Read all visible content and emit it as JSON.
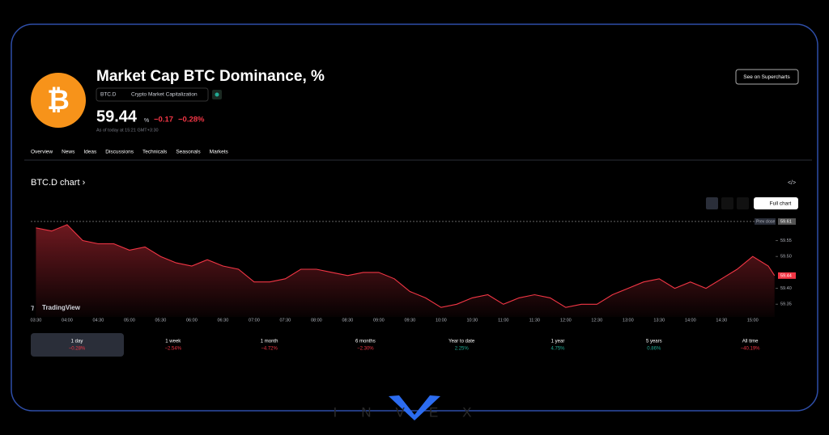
{
  "header": {
    "title": "Market Cap BTC Dominance, %",
    "symbol": "BTC.D",
    "exchange": "Crypto Market Capitalization",
    "price": "59.44",
    "unit": "%",
    "change": "−0.17",
    "change_pct": "−0.28%",
    "as_of": "As of today at 15:21 GMT+3:30",
    "button": "See on Supercharts"
  },
  "tabs": [
    "Overview",
    "News",
    "Ideas",
    "Discussions",
    "Technicals",
    "Seasonals",
    "Markets"
  ],
  "section_title": "BTC.D chart ›",
  "full_chart": "Full chart",
  "chart_data": {
    "type": "area",
    "color": "#f23645",
    "x": [
      "03:30",
      "03:45",
      "04:00",
      "04:15",
      "04:30",
      "04:45",
      "05:00",
      "05:15",
      "05:30",
      "05:45",
      "06:00",
      "06:15",
      "06:30",
      "06:45",
      "07:00",
      "07:15",
      "07:30",
      "07:45",
      "08:00",
      "08:15",
      "08:30",
      "08:45",
      "09:00",
      "09:15",
      "09:30",
      "09:45",
      "10:00",
      "10:15",
      "10:30",
      "10:45",
      "11:00",
      "11:15",
      "11:30",
      "11:45",
      "12:00",
      "12:15",
      "12:30",
      "12:45",
      "13:00",
      "13:15",
      "13:30",
      "13:45",
      "14:00",
      "14:15",
      "14:30",
      "14:45",
      "15:00",
      "15:15",
      "15:21"
    ],
    "values": [
      59.59,
      59.58,
      59.6,
      59.55,
      59.54,
      59.54,
      59.52,
      59.53,
      59.5,
      59.48,
      59.47,
      59.49,
      59.47,
      59.46,
      59.42,
      59.42,
      59.43,
      59.46,
      59.46,
      59.45,
      59.44,
      59.45,
      59.45,
      59.43,
      59.39,
      59.37,
      59.34,
      59.35,
      59.37,
      59.38,
      59.35,
      59.37,
      59.38,
      59.37,
      59.34,
      59.35,
      59.35,
      59.38,
      59.4,
      59.42,
      59.43,
      59.4,
      59.42,
      59.4,
      59.43,
      59.46,
      59.5,
      59.47,
      59.44
    ],
    "xlim": [
      "03:25",
      "15:22"
    ],
    "xticks": [
      "03:30",
      "04:00",
      "04:30",
      "05:00",
      "05:30",
      "06:00",
      "06:30",
      "07:00",
      "07:30",
      "08:00",
      "08:30",
      "09:00",
      "09:30",
      "10:00",
      "10:30",
      "11:00",
      "11:30",
      "12:00",
      "12:30",
      "13:00",
      "13:30",
      "14:00",
      "14:30",
      "15:00"
    ],
    "ylim": [
      59.31,
      59.62
    ],
    "yticks": [
      59.35,
      {
        "value": 59.4,
        "label": "59.40"
      },
      {
        "value": 59.5,
        "label": "59.50"
      },
      59.55
    ],
    "prev_close_label": "Prev close",
    "prev_close": 59.61,
    "watermark": "TradingView"
  },
  "periods": [
    {
      "label": "1 day",
      "change": "−0.28%"
    },
    {
      "label": "1 week",
      "change": "−2.54%"
    },
    {
      "label": "1 month",
      "change": "−4.72%"
    },
    {
      "label": "6 months",
      "change": "−2.30%"
    },
    {
      "label": "Year to date",
      "change": "2.25%"
    },
    {
      "label": "1 year",
      "change": "4.75%"
    },
    {
      "label": "5 years",
      "change": "0.86%"
    },
    {
      "label": "All time",
      "change": "−40.19%"
    }
  ],
  "brand": "INVEX"
}
